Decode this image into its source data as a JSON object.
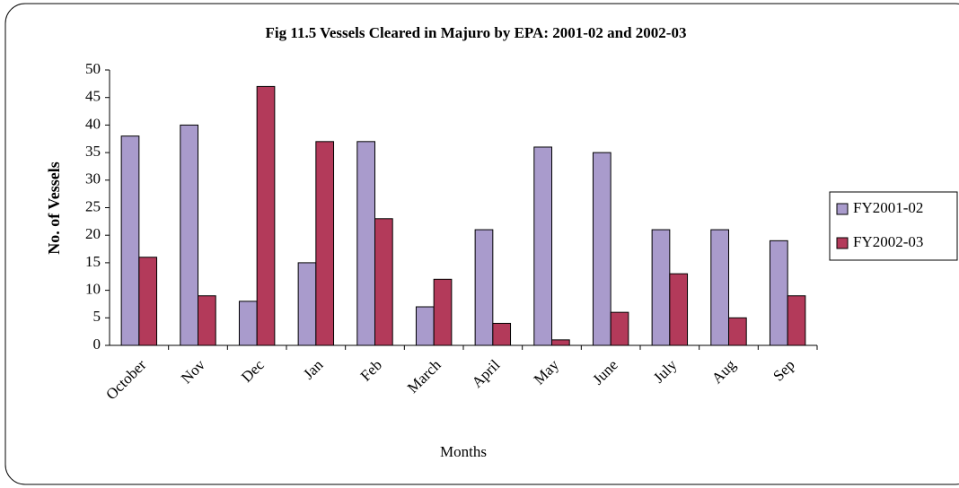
{
  "chart_data": {
    "type": "bar",
    "title": "Fig 11.5 Vessels Cleared in Majuro by EPA: 2001-02 and 2002-03",
    "x_label": "Months",
    "y_label": "No. of Vessels",
    "categories": [
      "October",
      "Nov",
      "Dec",
      "Jan",
      "Feb",
      "March",
      "April",
      "May",
      "June",
      "July",
      "Aug",
      "Sep"
    ],
    "series": [
      {
        "name": "FY2001-02",
        "color": "#a99bcc",
        "values": [
          38,
          40,
          8,
          15,
          37,
          7,
          21,
          36,
          35,
          21,
          21,
          19
        ]
      },
      {
        "name": "FY2002-03",
        "color": "#b33a5a",
        "values": [
          16,
          9,
          47,
          37,
          23,
          12,
          4,
          1,
          6,
          13,
          5,
          9
        ]
      }
    ],
    "ylim": [
      0,
      50
    ],
    "yticks": [
      0,
      5,
      10,
      15,
      20,
      25,
      30,
      35,
      40,
      45,
      50
    ],
    "legend": "right"
  }
}
